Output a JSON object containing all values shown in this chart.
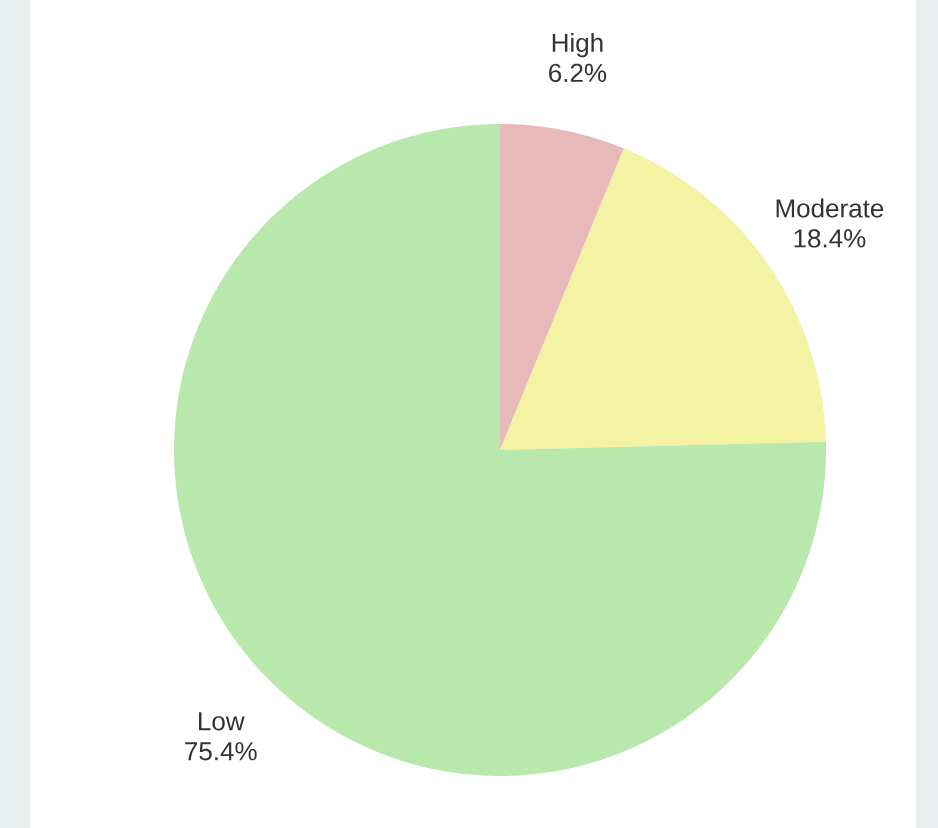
{
  "chart_data": {
    "type": "pie",
    "categories": [
      "High",
      "Moderate",
      "Low"
    ],
    "values": [
      6.2,
      18.4,
      75.4
    ],
    "value_labels": [
      "6.2%",
      "18.4%",
      "75.4%"
    ],
    "colors": [
      "#e8b9b9",
      "#f3f3a3",
      "#b9e8ad"
    ],
    "legend": false
  }
}
